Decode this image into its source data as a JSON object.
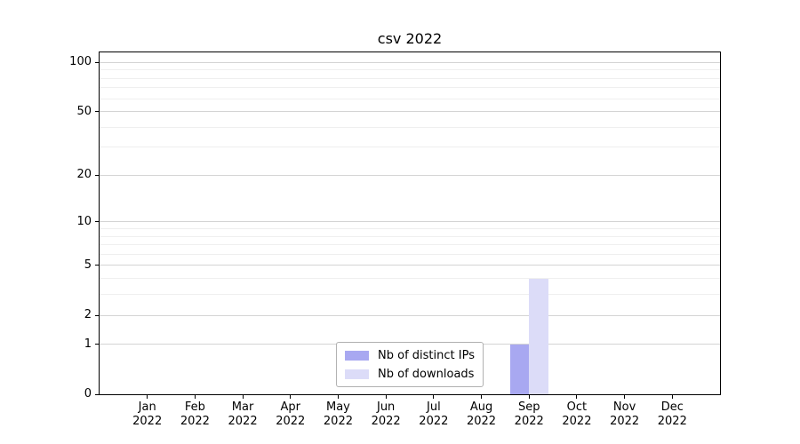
{
  "chart_data": {
    "type": "bar",
    "title": "csv 2022",
    "categories": [
      "Jan 2022",
      "Feb 2022",
      "Mar 2022",
      "Apr 2022",
      "May 2022",
      "Jun 2022",
      "Jul 2022",
      "Aug 2022",
      "Sep 2022",
      "Oct 2022",
      "Nov 2022",
      "Dec 2022"
    ],
    "series": [
      {
        "name": "Nb of distinct IPs",
        "color": "#a8a8f1",
        "values": [
          0,
          0,
          0,
          0,
          0,
          0,
          0,
          0,
          1,
          0,
          0,
          0
        ]
      },
      {
        "name": "Nb of downloads",
        "color": "#dcdcf8",
        "values": [
          0,
          0,
          0,
          0,
          0,
          0,
          0,
          0,
          4,
          0,
          0,
          0
        ]
      }
    ],
    "xlabel": "",
    "ylabel": "",
    "yscale": "log1p",
    "ylim": [
      0,
      115
    ],
    "y_ticks": [
      0,
      1,
      2,
      5,
      10,
      20,
      50,
      100
    ],
    "y_minor_ticks": [
      3,
      4,
      6,
      7,
      8,
      9,
      30,
      40,
      60,
      70,
      80,
      90
    ],
    "grid": "horizontal major+minor",
    "legend_position": "lower center"
  },
  "colors": {
    "background": "#ffffff",
    "axis": "#000000",
    "text": "#000000",
    "grid_major": "#d4d4d4",
    "grid_minor": "#efefef",
    "legend_border": "#b0b0b0"
  }
}
